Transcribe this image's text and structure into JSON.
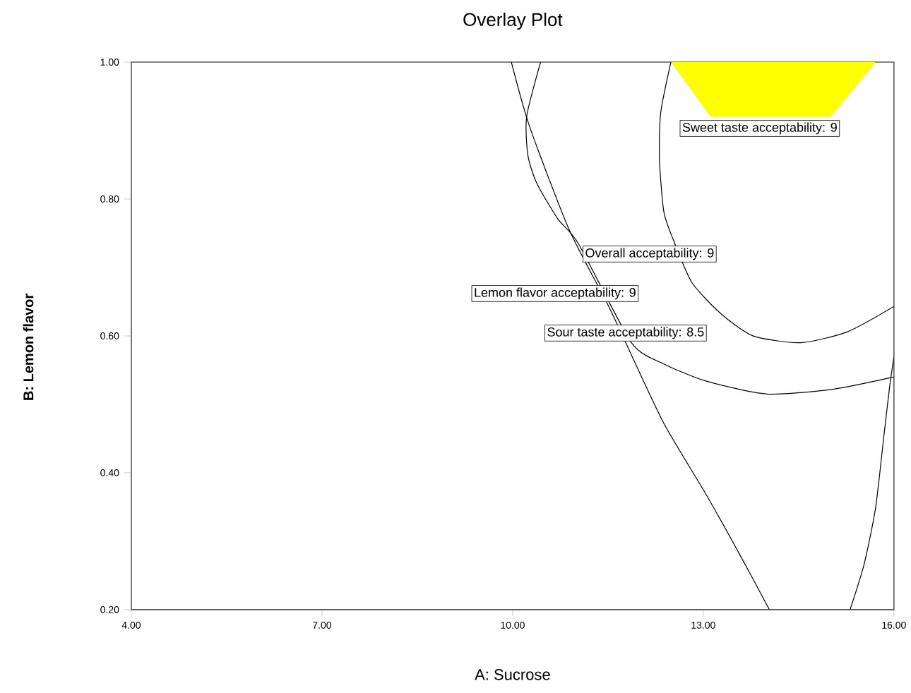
{
  "chart_data": {
    "type": "line",
    "title": "Overlay Plot",
    "xlabel": "A: Sucrose",
    "ylabel": "B: Lemon flavor",
    "xlim": [
      4,
      16
    ],
    "ylim": [
      0.2,
      1.0
    ],
    "xticks": [
      {
        "value": 4,
        "label": "4.00"
      },
      {
        "value": 7,
        "label": "7.00"
      },
      {
        "value": 10,
        "label": "10.00"
      },
      {
        "value": 13,
        "label": "13.00"
      },
      {
        "value": 16,
        "label": "16.00"
      }
    ],
    "yticks": [
      {
        "value": 0.2,
        "label": "0.20"
      },
      {
        "value": 0.4,
        "label": "0.40"
      },
      {
        "value": 0.6,
        "label": "0.60"
      },
      {
        "value": 0.8,
        "label": "0.80"
      },
      {
        "value": 1.0,
        "label": "1.00"
      }
    ],
    "series": [
      {
        "type": "area",
        "color": "#ffff00",
        "x": [
          12.49,
          13.11,
          15.0,
          15.71
        ],
        "values": [
          1.0,
          0.92,
          0.92,
          1.0
        ]
      },
      {
        "color": "#000000",
        "x": [
          9.98,
          10.27,
          10.89,
          11.49,
          11.78,
          12.38,
          13.04,
          13.6,
          14.04
        ],
        "values": [
          1.0,
          0.905,
          0.755,
          0.647,
          0.59,
          0.472,
          0.369,
          0.276,
          0.2
        ]
      },
      {
        "color": "#000000",
        "x": [
          10.44,
          10.22,
          10.24,
          10.38,
          10.71,
          11.04,
          11.49,
          11.87,
          12.38,
          13.04,
          14.0,
          15.04,
          16.0
        ],
        "values": [
          1.0,
          0.92,
          0.864,
          0.823,
          0.771,
          0.734,
          null,
          0.59,
          0.559,
          0.534,
          0.515,
          0.522,
          0.54
        ]
      },
      {
        "color": "#000000",
        "x": [
          12.49,
          12.33,
          12.31,
          12.38,
          12.53,
          12.82,
          13.27,
          13.78,
          14.53,
          15.27,
          16.0
        ],
        "values": [
          1.0,
          0.926,
          0.858,
          0.781,
          0.74,
          0.678,
          0.633,
          0.6,
          0.59,
          0.606,
          0.643
        ]
      },
      {
        "color": "#000000",
        "x": [
          15.31,
          15.53,
          15.71,
          15.84,
          15.93,
          16.0
        ],
        "values": [
          0.2,
          0.266,
          0.348,
          0.452,
          0.524,
          0.569
        ]
      }
    ],
    "annotations": [
      "Sweet taste acceptability: 9",
      "Overall acceptability: 9",
      "Lemon flavor acceptability: 9",
      "Sour taste acceptability: 8.5"
    ],
    "grid": false,
    "marker": "none",
    "line_style": "solid"
  }
}
